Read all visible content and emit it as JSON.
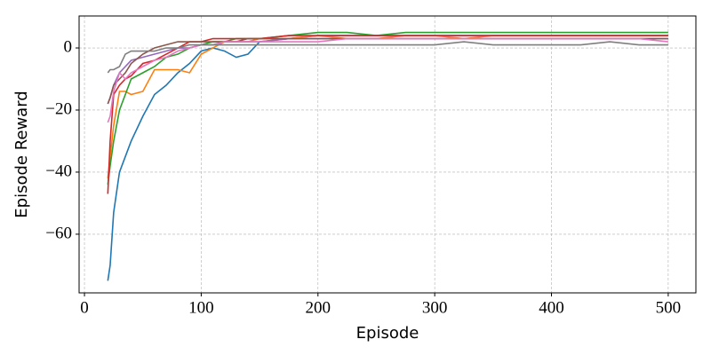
{
  "chart_data": {
    "type": "line",
    "xlabel": "Episode",
    "ylabel": "Episode Reward",
    "x": [
      20,
      22,
      25,
      30,
      35,
      40,
      50,
      60,
      70,
      80,
      90,
      100,
      110,
      120,
      130,
      140,
      150,
      175,
      200,
      225,
      250,
      275,
      300,
      325,
      350,
      375,
      400,
      425,
      450,
      475,
      500
    ],
    "series": [
      {
        "color": "#1f77b4",
        "values": [
          -75,
          -70,
          -53,
          -40,
          -35,
          -30,
          -22,
          -15,
          -12,
          -8,
          -5,
          -1,
          0,
          -1,
          -3,
          -2,
          2,
          3,
          4,
          4,
          4,
          4,
          4,
          4,
          4,
          4,
          4,
          4,
          4,
          4,
          4
        ]
      },
      {
        "color": "#ff7f0e",
        "values": [
          -42,
          -35,
          -25,
          -14,
          -14,
          -15,
          -14,
          -7,
          -7,
          -7,
          -8,
          -2,
          0,
          2,
          2,
          2,
          3,
          3,
          4,
          3,
          3,
          4,
          4,
          3,
          4,
          4,
          4,
          4,
          4,
          4,
          4
        ]
      },
      {
        "color": "#2ca02c",
        "values": [
          -44,
          -38,
          -30,
          -20,
          -15,
          -10,
          -8,
          -6,
          -3,
          -2,
          0,
          1,
          2,
          2,
          3,
          3,
          3,
          4,
          5,
          5,
          4,
          5,
          5,
          5,
          5,
          5,
          5,
          5,
          5,
          5,
          5
        ]
      },
      {
        "color": "#d62728",
        "values": [
          -47,
          -30,
          -15,
          -12,
          -10,
          -9,
          -5,
          -4,
          -2,
          0,
          2,
          2,
          3,
          3,
          3,
          3,
          3,
          4,
          4,
          4,
          4,
          4,
          4,
          4,
          4,
          4,
          4,
          4,
          4,
          4,
          4
        ]
      },
      {
        "color": "#9467bd",
        "values": [
          -18,
          -16,
          -12,
          -8,
          -6,
          -4,
          -3,
          -2,
          -1,
          0,
          0,
          1,
          1,
          2,
          2,
          2,
          2,
          3,
          3,
          3,
          3,
          3,
          3,
          3,
          3,
          3,
          3,
          3,
          3,
          3,
          3
        ]
      },
      {
        "color": "#8c564b",
        "values": [
          -18,
          -16,
          -12,
          -10,
          -8,
          -5,
          -2,
          0,
          1,
          2,
          2,
          2,
          2,
          2,
          2,
          3,
          3,
          3,
          3,
          3,
          3,
          3,
          3,
          3,
          3,
          3,
          3,
          3,
          3,
          3,
          3
        ]
      },
      {
        "color": "#e377c2",
        "values": [
          -24,
          -22,
          -14,
          -8,
          -10,
          -8,
          -6,
          -4,
          -3,
          -1,
          0,
          1,
          1,
          2,
          2,
          2,
          2,
          2,
          2,
          3,
          3,
          3,
          3,
          3,
          3,
          3,
          3,
          3,
          3,
          3,
          2
        ]
      },
      {
        "color": "#7f7f7f",
        "values": [
          -8,
          -7,
          -7,
          -6,
          -2,
          -1,
          -1,
          -1,
          0,
          0,
          1,
          1,
          1,
          1,
          1,
          1,
          1,
          1,
          1,
          1,
          1,
          1,
          1,
          2,
          1,
          1,
          1,
          1,
          2,
          1,
          1
        ]
      }
    ],
    "xlim": [
      -4.6,
      523.7
    ],
    "xticks": [
      0,
      100,
      200,
      300,
      400,
      500
    ],
    "ylim": [
      -78.9,
      10.3
    ],
    "yticks": [
      {
        "value": -60,
        "label": "−60"
      },
      {
        "value": -40,
        "label": "−40"
      },
      {
        "value": -20,
        "label": "−20"
      },
      0
    ],
    "grid": true
  }
}
